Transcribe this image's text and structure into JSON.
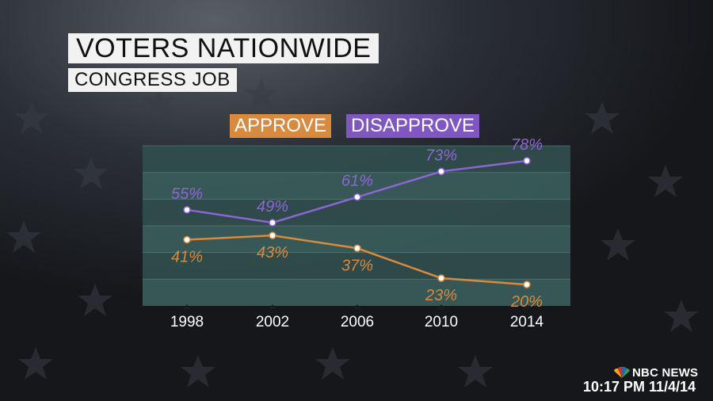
{
  "header": {
    "title": "VOTERS NATIONWIDE",
    "subtitle": "CONGRESS JOB"
  },
  "legend": {
    "approve": "APPROVE",
    "disapprove": "DISAPPROVE"
  },
  "chart_data": {
    "type": "line",
    "title": "VOTERS NATIONWIDE",
    "subtitle": "CONGRESS JOB",
    "categories": [
      "1998",
      "2002",
      "2006",
      "2010",
      "2014"
    ],
    "series": [
      {
        "name": "DISAPPROVE",
        "values": [
          55,
          49,
          61,
          73,
          78
        ],
        "labels": [
          "55%",
          "49%",
          "61%",
          "73%",
          "78%"
        ],
        "color": "#8e65d4"
      },
      {
        "name": "APPROVE",
        "values": [
          41,
          43,
          37,
          23,
          20
        ],
        "labels": [
          "41%",
          "43%",
          "37%",
          "23%",
          "20%"
        ],
        "color": "#d88a3e"
      }
    ],
    "ylim": [
      10,
      85
    ],
    "grid": true,
    "legend_position": "top"
  },
  "branding": {
    "network": "NBC NEWS",
    "timestamp": "10:17 PM 11/4/14"
  },
  "colors": {
    "approve": "#d88a3e",
    "disapprove": "#8057c0",
    "plot_band": "#3b5a5e"
  }
}
